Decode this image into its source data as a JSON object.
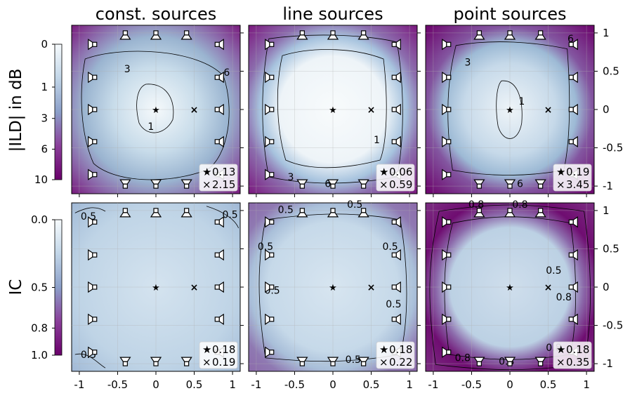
{
  "chart_data": {
    "type": "heatmap",
    "columns": [
      "const. sources",
      "line sources",
      "point sources"
    ],
    "xlim": [
      -1.1,
      1.1
    ],
    "ylim": [
      -1.1,
      1.1
    ],
    "x_ticks": [
      "-1",
      "-0.5",
      "0",
      "0.5",
      "1"
    ],
    "y_ticks": [
      "-1",
      "-0.5",
      "0",
      "0.5",
      "1"
    ],
    "listener_positions": [
      {
        "symbol": "★",
        "x": 0,
        "y": 0
      },
      {
        "symbol": "×",
        "x": 0.5,
        "y": 0
      }
    ],
    "loudspeakers": [
      {
        "x": -0.4,
        "y": 1.0,
        "side": "top"
      },
      {
        "x": 0.0,
        "y": 1.0,
        "side": "top"
      },
      {
        "x": 0.4,
        "y": 1.0,
        "side": "top"
      },
      {
        "x": -0.4,
        "y": -1.0,
        "side": "bottom"
      },
      {
        "x": 0.0,
        "y": -1.0,
        "side": "bottom"
      },
      {
        "x": 0.4,
        "y": -1.0,
        "side": "bottom"
      },
      {
        "x": -0.8,
        "y": 0.85,
        "side": "left"
      },
      {
        "x": -0.8,
        "y": 0.42,
        "side": "left"
      },
      {
        "x": -0.8,
        "y": 0.0,
        "side": "left"
      },
      {
        "x": -0.8,
        "y": -0.42,
        "side": "left"
      },
      {
        "x": -0.8,
        "y": -0.85,
        "side": "left"
      },
      {
        "x": 0.8,
        "y": 0.85,
        "side": "right"
      },
      {
        "x": 0.8,
        "y": 0.42,
        "side": "right"
      },
      {
        "x": 0.8,
        "y": 0.0,
        "side": "right"
      },
      {
        "x": 0.8,
        "y": -0.42,
        "side": "right"
      },
      {
        "x": 0.8,
        "y": -0.85,
        "side": "right"
      }
    ],
    "rows": [
      {
        "label": "|ILD| in dB",
        "colorbar": {
          "ticks": [
            "0",
            "1",
            "3",
            "6",
            "10"
          ],
          "values": [
            0,
            1,
            3,
            6,
            10
          ],
          "range": [
            0,
            10
          ]
        },
        "panels": [
          {
            "star": "0.13",
            "cross": "2.15",
            "contour_labels": [
              "3",
              "1",
              "6"
            ]
          },
          {
            "star": "0.06",
            "cross": "0.59",
            "contour_labels": [
              "1",
              "3",
              "6"
            ]
          },
          {
            "star": "0.19",
            "cross": "3.45",
            "contour_labels": [
              "6",
              "3",
              "1",
              "6"
            ]
          }
        ]
      },
      {
        "label": "IC",
        "colorbar": {
          "ticks": [
            "0.0",
            "0.5",
            "0.8",
            "1.0"
          ],
          "values": [
            0,
            0.5,
            0.8,
            1.0
          ],
          "range": [
            0,
            1
          ]
        },
        "panels": [
          {
            "star": "0.18",
            "cross": "0.19",
            "contour_labels": [
              "0.5",
              "0.5",
              "0.5"
            ]
          },
          {
            "star": "0.18",
            "cross": "0.22",
            "contour_labels": [
              "0.5",
              "0.5",
              "0.5",
              "0.5",
              "0.5",
              "0.5",
              "0.5"
            ]
          },
          {
            "star": "0.18",
            "cross": "0.35",
            "contour_labels": [
              "0.8",
              "0.8",
              "0.8",
              "0.8",
              "0.8",
              "0.5",
              "0.8"
            ]
          }
        ]
      }
    ]
  }
}
